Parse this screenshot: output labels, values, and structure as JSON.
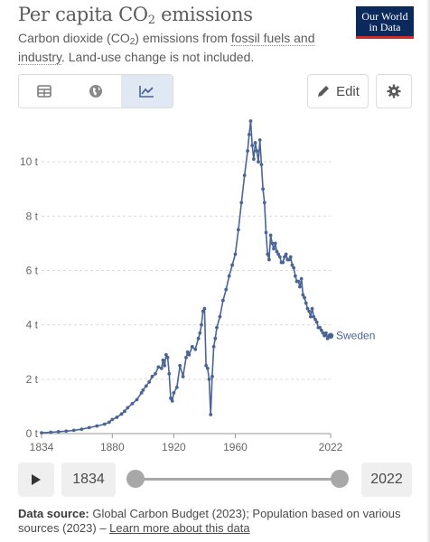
{
  "header": {
    "title_main": "Per capita CO",
    "title_sub": "2",
    "title_end": " emissions",
    "subtitle_start": "Carbon dioxide (CO",
    "subtitle_sub": "2",
    "subtitle_mid": ") emissions from ",
    "subtitle_link": "fossil fuels and industry",
    "subtitle_end": ". Land-use change is not included.",
    "logo_line1": "Our World",
    "logo_line2": "in Data"
  },
  "toolbar": {
    "tabs": [
      "table-icon",
      "globe-icon",
      "line-chart-icon"
    ],
    "active_tab": 2,
    "edit_label": "Edit",
    "accent": "#dfe8f3"
  },
  "timeline": {
    "start_year": "1834",
    "end_year": "2022"
  },
  "footer": {
    "source_label": "Data source:",
    "source_text": " Global Carbon Budget (2023); Population based on various sources (2023) – ",
    "source_link": "Learn more about this data"
  },
  "chart_data": {
    "type": "line",
    "series": [
      {
        "name": "Sweden",
        "color": "#4a6595",
        "x": [
          1834,
          1840,
          1845,
          1850,
          1855,
          1860,
          1865,
          1870,
          1875,
          1878,
          1880,
          1883,
          1886,
          1888,
          1890,
          1893,
          1896,
          1899,
          1900,
          1902,
          1904,
          1906,
          1908,
          1910,
          1912,
          1913,
          1914,
          1915,
          1916,
          1917,
          1918,
          1919,
          1920,
          1922,
          1924,
          1926,
          1928,
          1929,
          1930,
          1932,
          1934,
          1936,
          1937,
          1938,
          1939,
          1940,
          1941,
          1942,
          1943,
          1944,
          1945,
          1946,
          1947,
          1948,
          1950,
          1952,
          1954,
          1956,
          1958,
          1960,
          1962,
          1964,
          1966,
          1968,
          1969,
          1970,
          1971,
          1972,
          1973,
          1974,
          1975,
          1976,
          1977,
          1978,
          1979,
          1980,
          1981,
          1982,
          1983,
          1984,
          1985,
          1986,
          1987,
          1988,
          1989,
          1990,
          1991,
          1992,
          1993,
          1994,
          1995,
          1996,
          1997,
          1998,
          1999,
          2000,
          2001,
          2002,
          2003,
          2004,
          2005,
          2006,
          2007,
          2008,
          2009,
          2010,
          2011,
          2012,
          2013,
          2014,
          2015,
          2016,
          2017,
          2018,
          2019,
          2020,
          2021,
          2022
        ],
        "y": [
          0.03,
          0.05,
          0.07,
          0.09,
          0.12,
          0.16,
          0.22,
          0.28,
          0.35,
          0.42,
          0.52,
          0.6,
          0.72,
          0.82,
          0.95,
          1.1,
          1.25,
          1.5,
          1.6,
          1.75,
          1.9,
          2.1,
          2.2,
          2.45,
          2.4,
          2.7,
          2.5,
          2.9,
          2.8,
          2.2,
          1.3,
          1.2,
          1.5,
          1.7,
          2.5,
          2.1,
          2.8,
          3.0,
          2.9,
          3.2,
          3.1,
          3.5,
          3.7,
          4.0,
          4.5,
          4.6,
          2.5,
          2.4,
          2.0,
          0.7,
          2.1,
          3.2,
          3.5,
          3.9,
          4.3,
          4.9,
          5.3,
          5.8,
          6.2,
          6.6,
          7.5,
          8.5,
          9.5,
          10.4,
          11.0,
          11.5,
          10.6,
          10.1,
          10.7,
          10.4,
          10.0,
          10.8,
          9.9,
          9.0,
          8.5,
          7.4,
          6.6,
          6.4,
          7.3,
          7.0,
          6.8,
          7.0,
          6.7,
          6.6,
          6.5,
          6.3,
          6.3,
          6.5,
          6.6,
          6.4,
          6.4,
          6.5,
          6.2,
          6.1,
          5.8,
          5.6,
          5.6,
          5.4,
          5.7,
          5.1,
          5.0,
          4.8,
          4.6,
          4.5,
          4.3,
          4.6,
          4.3,
          4.2,
          4.1,
          3.9,
          3.9,
          3.8,
          3.7,
          3.6,
          3.7,
          3.5,
          3.6,
          3.6
        ]
      }
    ],
    "x_ticks": [
      "1834",
      "1880",
      "1920",
      "1960",
      "2022"
    ],
    "y_ticks": [
      "0 t",
      "2 t",
      "4 t",
      "6 t",
      "8 t",
      "10 t"
    ],
    "xlim": [
      1834,
      2022
    ],
    "ylim": [
      0,
      11.5
    ],
    "legend_label": "Sweden",
    "grid": true
  }
}
